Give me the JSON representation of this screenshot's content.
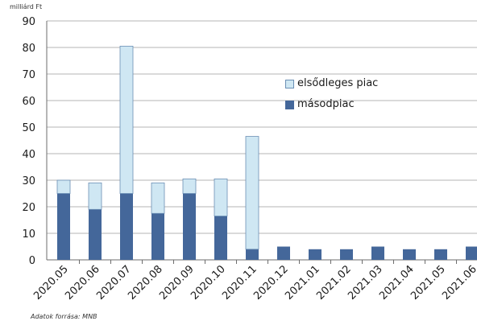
{
  "chart_data": {
    "type": "bar",
    "stacked": true,
    "unit_label": "milliárd Ft",
    "source_note": "Adatok forrása: MNB",
    "categories": [
      "2020.05",
      "2020.06",
      "2020.07",
      "2020.08",
      "2020.09",
      "2020.10",
      "2020.11",
      "2020.12",
      "2021.01",
      "2021.02",
      "2021.03",
      "2021.04",
      "2021.05",
      "2021.06"
    ],
    "series": [
      {
        "name": "másodpiac",
        "color": "#44679a",
        "values": [
          25,
          19,
          25,
          17.5,
          25,
          16.5,
          4,
          5,
          4,
          4,
          5,
          4,
          4,
          5
        ]
      },
      {
        "name": "elsődleges piac",
        "color": "#cfe7f3",
        "values": [
          5,
          10,
          55.5,
          11.5,
          5.5,
          14,
          42.5,
          0,
          0,
          0,
          0,
          0,
          0,
          0
        ]
      }
    ],
    "ylim": [
      0,
      90
    ],
    "yticks": [
      0,
      10,
      20,
      30,
      40,
      50,
      60,
      70,
      80,
      90
    ],
    "grid": true,
    "legend_position": "center-right"
  }
}
